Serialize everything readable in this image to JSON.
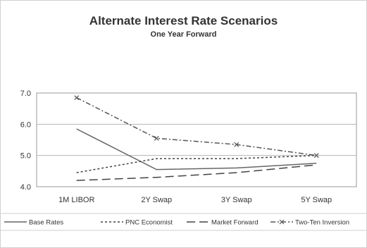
{
  "chart_data": {
    "type": "line",
    "title": "Alternate Interest Rate Scenarios",
    "subtitle": "One Year Forward",
    "categories": [
      "1M LIBOR",
      "2Y Swap",
      "3Y Swap",
      "5Y Swap"
    ],
    "ylim": [
      4.0,
      7.0
    ],
    "yticks": [
      "7.0",
      "6.0",
      "5.0",
      "4.0"
    ],
    "grid": true,
    "legend_position": "bottom",
    "series": [
      {
        "name": "Base Rates",
        "values": [
          5.85,
          4.55,
          4.6,
          4.75
        ],
        "dash": "solid",
        "marker": "none",
        "color": "#666666"
      },
      {
        "name": "PNC Economist",
        "values": [
          4.45,
          4.9,
          4.9,
          5.0
        ],
        "dash": "dotted",
        "marker": "none",
        "color": "#444444"
      },
      {
        "name": "Market Forward",
        "values": [
          4.2,
          4.3,
          4.45,
          4.7
        ],
        "dash": "longdash",
        "marker": "none",
        "color": "#444444"
      },
      {
        "name": "Two-Ten Inversion",
        "values": [
          6.85,
          5.55,
          5.35,
          5.0
        ],
        "dash": "dashdot",
        "marker": "x",
        "color": "#555555"
      }
    ]
  }
}
